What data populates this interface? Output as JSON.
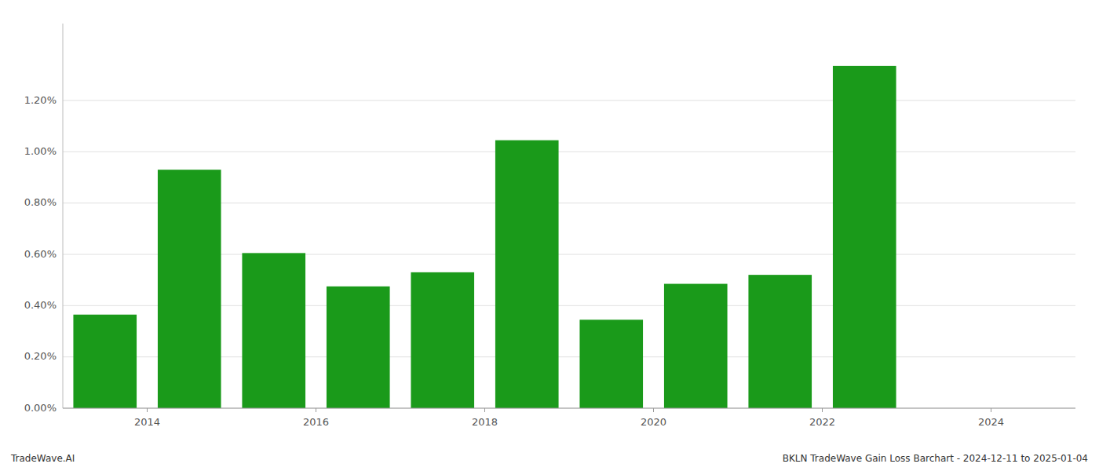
{
  "chart_data": {
    "type": "bar",
    "x": [
      2013.5,
      2014.5,
      2015.5,
      2016.5,
      2017.5,
      2018.5,
      2019.5,
      2020.5,
      2021.5,
      2022.5
    ],
    "values": [
      0.00365,
      0.0093,
      0.00605,
      0.00475,
      0.0053,
      0.01045,
      0.00345,
      0.00485,
      0.0052,
      0.01335
    ],
    "color": "#1a9a1a",
    "xlim": [
      2013.0,
      2025.0
    ],
    "xticks": [
      2014,
      2016,
      2018,
      2020,
      2022,
      2024
    ],
    "ylim": [
      0.0,
      0.015
    ],
    "yticks": [
      {
        "value": 0.0,
        "label": "0.00%"
      },
      {
        "value": 0.002,
        "label": "0.20%"
      },
      {
        "value": 0.004,
        "label": "0.40%"
      },
      {
        "value": 0.006,
        "label": "0.60%"
      },
      {
        "value": 0.008,
        "label": "0.80%"
      },
      {
        "value": 0.01,
        "label": "1.00%"
      },
      {
        "value": 0.012,
        "label": "1.20%"
      }
    ],
    "grid": true,
    "annotations": [
      "TradeWave.AI",
      "BKLN TradeWave Gain Loss Barchart - 2024-12-11 to 2025-01-04"
    ]
  }
}
